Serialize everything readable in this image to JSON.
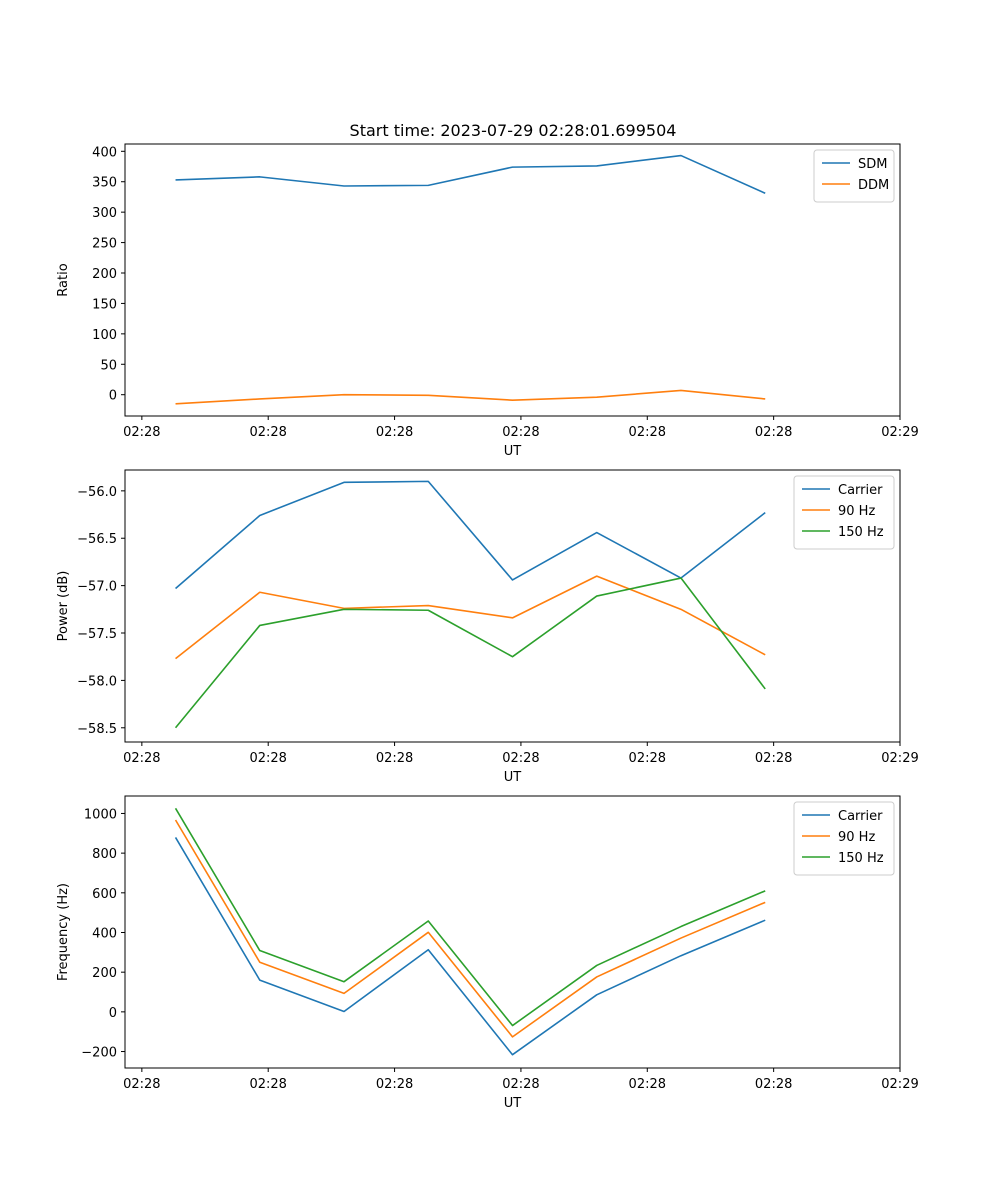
{
  "title": "Start time: 2023-07-29 02:28:01.699504",
  "colors": {
    "blue": "#1f77b4",
    "orange": "#ff7f0e",
    "green": "#2ca02c"
  },
  "chart_data": [
    {
      "type": "line",
      "xlabel": "UT",
      "ylabel": "Ratio",
      "xlim": [
        -0.6,
        8.6
      ],
      "ylim": [
        -35,
        412
      ],
      "x": [
        0,
        1,
        2,
        3,
        4,
        5,
        6,
        7
      ],
      "xticks": [
        -0.4,
        1.1,
        2.6,
        4.1,
        5.6,
        7.1,
        8.6
      ],
      "xticklabels": [
        "02:28",
        "02:28",
        "02:28",
        "02:28",
        "02:28",
        "02:28",
        "02:29"
      ],
      "yticks": [
        0,
        50,
        100,
        150,
        200,
        250,
        300,
        350,
        400
      ],
      "yticklabels": [
        "0",
        "50",
        "100",
        "150",
        "200",
        "250",
        "300",
        "350",
        "400"
      ],
      "legend_position": "top-right",
      "series": [
        {
          "name": "SDM",
          "color": "#1f77b4",
          "values": [
            353,
            358,
            343,
            344,
            374,
            376,
            393,
            331
          ]
        },
        {
          "name": "DDM",
          "color": "#ff7f0e",
          "values": [
            -15,
            -7,
            0,
            -1,
            -9,
            -4,
            7,
            -7
          ]
        }
      ]
    },
    {
      "type": "line",
      "xlabel": "UT",
      "ylabel": "Power (dB)",
      "xlim": [
        -0.6,
        8.6
      ],
      "ylim": [
        -58.65,
        -55.78
      ],
      "x": [
        0,
        1,
        2,
        3,
        4,
        5,
        6,
        7
      ],
      "xticks": [
        -0.4,
        1.1,
        2.6,
        4.1,
        5.6,
        7.1,
        8.6
      ],
      "xticklabels": [
        "02:28",
        "02:28",
        "02:28",
        "02:28",
        "02:28",
        "02:28",
        "02:29"
      ],
      "yticks": [
        -58.5,
        -58.0,
        -57.5,
        -57.0,
        -56.5,
        -56.0
      ],
      "yticklabels": [
        "−58.5",
        "−58.0",
        "−57.5",
        "−57.0",
        "−56.5",
        "−56.0"
      ],
      "legend_position": "top-right",
      "series": [
        {
          "name": "Carrier",
          "color": "#1f77b4",
          "values": [
            -57.03,
            -56.26,
            -55.91,
            -55.9,
            -56.94,
            -56.44,
            -56.92,
            -56.23
          ]
        },
        {
          "name": "90 Hz",
          "color": "#ff7f0e",
          "values": [
            -57.77,
            -57.07,
            -57.24,
            -57.21,
            -57.34,
            -56.9,
            -57.25,
            -57.73
          ]
        },
        {
          "name": "150 Hz",
          "color": "#2ca02c",
          "values": [
            -58.5,
            -57.42,
            -57.25,
            -57.26,
            -57.75,
            -57.11,
            -56.92,
            -58.09
          ]
        }
      ]
    },
    {
      "type": "line",
      "xlabel": "UT",
      "ylabel": "Frequency (Hz)",
      "xlim": [
        -0.6,
        8.6
      ],
      "ylim": [
        -283,
        1088
      ],
      "x": [
        0,
        1,
        2,
        3,
        4,
        5,
        6,
        7
      ],
      "xticks": [
        -0.4,
        1.1,
        2.6,
        4.1,
        5.6,
        7.1,
        8.6
      ],
      "xticklabels": [
        "02:28",
        "02:28",
        "02:28",
        "02:28",
        "02:28",
        "02:28",
        "02:29"
      ],
      "yticks": [
        -200,
        0,
        200,
        400,
        600,
        800,
        1000
      ],
      "yticklabels": [
        "−200",
        "0",
        "200",
        "400",
        "600",
        "800",
        "1000"
      ],
      "legend_position": "top-right",
      "series": [
        {
          "name": "Carrier",
          "color": "#1f77b4",
          "values": [
            879,
            160,
            2,
            313,
            -216,
            86,
            283,
            462
          ]
        },
        {
          "name": "90 Hz",
          "color": "#ff7f0e",
          "values": [
            967,
            250,
            93,
            401,
            -126,
            176,
            372,
            552
          ]
        },
        {
          "name": "150 Hz",
          "color": "#2ca02c",
          "values": [
            1026,
            309,
            152,
            458,
            -69,
            234,
            430,
            610
          ]
        }
      ]
    }
  ]
}
